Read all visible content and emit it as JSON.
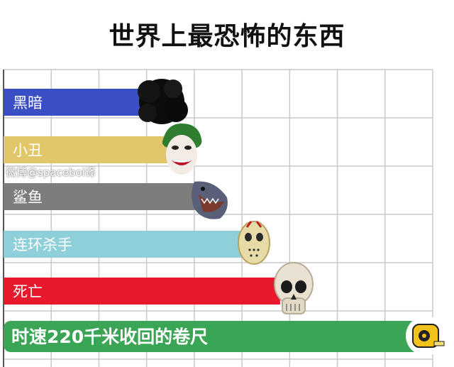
{
  "title": "世界上最恐怖的东西",
  "watermark": "微博@spaceboi译",
  "colors": {
    "grid": "#c9c9c9",
    "bars": [
      "#3b4fc4",
      "#e2c76a",
      "#7d7d7d",
      "#8ecfd9",
      "#e8192c",
      "#3aa655"
    ]
  },
  "icons": [
    "black-smoke-icon",
    "joker-icon",
    "shark-icon",
    "hockey-mask-icon",
    "skull-icon",
    "tape-measure-icon"
  ],
  "chart_data": {
    "type": "bar",
    "orientation": "horizontal",
    "title": "世界上最恐怖的东西",
    "categories": [
      "黑暗",
      "小丑",
      "鲨鱼",
      "连环杀手",
      "死亡",
      "时速220千米收回的卷尺"
    ],
    "values": [
      3.0,
      3.6,
      4.1,
      5.0,
      5.8,
      9.0
    ],
    "xlim": [
      0,
      9
    ],
    "grid": true,
    "legend": "none"
  }
}
